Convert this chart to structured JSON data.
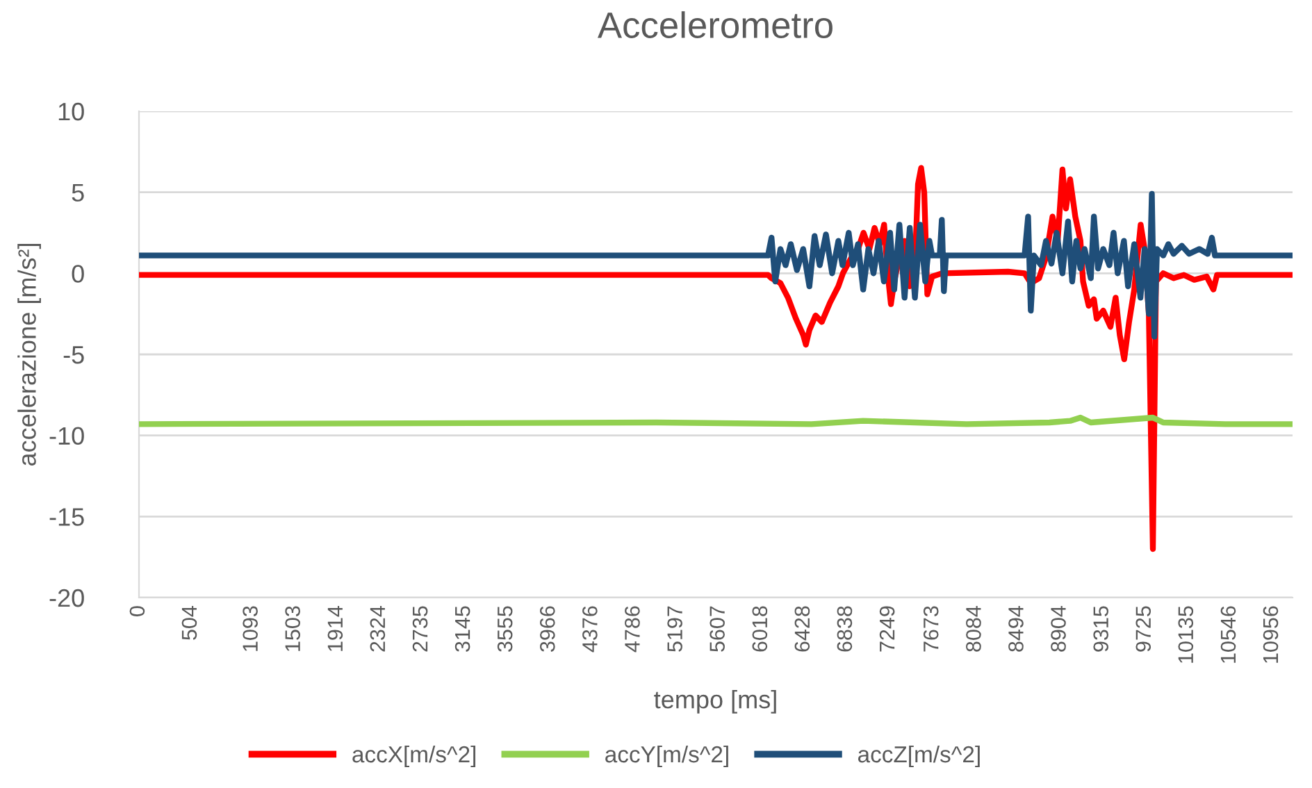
{
  "chart_data": {
    "type": "line",
    "title": "Accelerometro",
    "xlabel": "tempo [ms]",
    "ylabel": "accelerazione [m/s²]",
    "xlim": [
      0,
      11150
    ],
    "ylim": [
      -20,
      10
    ],
    "xticks": [
      0,
      504,
      1093,
      1503,
      1914,
      2324,
      2735,
      3145,
      3555,
      3966,
      4376,
      4786,
      5197,
      5607,
      6018,
      6428,
      6838,
      7249,
      7673,
      8084,
      8494,
      8904,
      9315,
      9725,
      10135,
      10546,
      10956
    ],
    "yticks": [
      -20,
      -15,
      -10,
      -5,
      0,
      5,
      10
    ],
    "grid": "y",
    "legend": "bottom",
    "marker": "none",
    "line_style": "solid",
    "series": [
      {
        "name": "accX[m/s^2]",
        "color": "#ff0000",
        "x": [
          0,
          6080,
          6114,
          6200,
          6273,
          6350,
          6420,
          6446,
          6480,
          6540,
          6600,
          6680,
          6760,
          6804,
          6880,
          6950,
          7003,
          7060,
          7110,
          7160,
          7202,
          7240,
          7268,
          7300,
          7350,
          7401,
          7450,
          7500,
          7530,
          7560,
          7590,
          7620,
          7666,
          7760,
          8400,
          8560,
          8620,
          8700,
          8767,
          8830,
          8880,
          8926,
          8960,
          9000,
          9050,
          9100,
          9125,
          9180,
          9230,
          9257,
          9320,
          9390,
          9440,
          9480,
          9523,
          9570,
          9620,
          9682,
          9720,
          9761,
          9800,
          9830,
          9900,
          10000,
          10100,
          10200,
          10320,
          10385,
          10420,
          10600,
          11150
        ],
        "values": [
          -0.1,
          -0.1,
          -0.3,
          -0.6,
          -1.5,
          -2.8,
          -3.8,
          -4.4,
          -3.5,
          -2.6,
          -3.0,
          -1.8,
          -0.8,
          0.0,
          0.9,
          1.5,
          2.5,
          1.5,
          2.8,
          1.8,
          3.0,
          -0.2,
          -1.9,
          -0.5,
          1.0,
          2.0,
          -0.8,
          0.5,
          5.5,
          6.5,
          5.0,
          -1.3,
          -0.2,
          0.0,
          0.1,
          0.0,
          -0.6,
          -0.3,
          1.0,
          3.5,
          2.0,
          6.4,
          4.0,
          5.8,
          3.5,
          2.0,
          -0.5,
          -2.0,
          -1.6,
          -2.8,
          -2.3,
          -3.3,
          -1.5,
          -3.8,
          -5.3,
          -3.0,
          -1.0,
          3.0,
          1.5,
          -2.5,
          -17.0,
          -0.5,
          0.0,
          -0.3,
          -0.1,
          -0.4,
          -0.2,
          -1.0,
          -0.1,
          -0.1,
          -0.1
        ]
      },
      {
        "name": "accY[m/s^2]",
        "color": "#92d050",
        "x": [
          0,
          5000,
          6500,
          7000,
          7500,
          8000,
          8800,
          9000,
          9100,
          9200,
          9800,
          9900,
          10500,
          11150
        ],
        "values": [
          -9.3,
          -9.2,
          -9.3,
          -9.1,
          -9.2,
          -9.3,
          -9.2,
          -9.1,
          -8.9,
          -9.2,
          -8.9,
          -9.2,
          -9.3,
          -9.3
        ]
      },
      {
        "name": "accZ[m/s^2]",
        "color": "#1f4e79",
        "x": [
          0,
          6080,
          6114,
          6150,
          6200,
          6250,
          6300,
          6360,
          6420,
          6480,
          6530,
          6580,
          6640,
          6700,
          6760,
          6800,
          6860,
          6900,
          6950,
          7000,
          7050,
          7100,
          7150,
          7200,
          7260,
          7300,
          7350,
          7400,
          7450,
          7500,
          7550,
          7600,
          7640,
          7666,
          7740,
          7760,
          7780,
          7800,
          8560,
          8594,
          8620,
          8650,
          8720,
          8767,
          8820,
          8870,
          8926,
          8980,
          9020,
          9060,
          9100,
          9140,
          9200,
          9230,
          9270,
          9320,
          9380,
          9420,
          9460,
          9520,
          9560,
          9620,
          9680,
          9720,
          9761,
          9790,
          9814,
          9840,
          9900,
          9950,
          10000,
          10080,
          10150,
          10250,
          10330,
          10370,
          10400,
          11150
        ],
        "values": [
          1.1,
          1.1,
          2.2,
          -0.5,
          1.5,
          0.5,
          1.8,
          0.2,
          1.5,
          -0.8,
          2.3,
          0.5,
          2.4,
          0.0,
          2.0,
          0.5,
          2.5,
          0.5,
          1.8,
          -1.0,
          1.5,
          0.0,
          2.0,
          -0.5,
          2.5,
          -1.0,
          3.0,
          -1.5,
          2.8,
          -1.5,
          3.0,
          -0.5,
          2.0,
          1.1,
          1.1,
          3.3,
          -1.1,
          1.1,
          1.1,
          3.5,
          -2.3,
          1.1,
          0.5,
          2.0,
          0.6,
          2.5,
          0.0,
          3.2,
          -0.5,
          2.0,
          0.3,
          1.5,
          -0.3,
          3.5,
          0.3,
          1.5,
          0.5,
          2.5,
          0.0,
          2.0,
          -0.8,
          1.8,
          -1.5,
          1.5,
          -2.5,
          4.9,
          -3.9,
          1.5,
          1.1,
          1.8,
          1.2,
          1.7,
          1.2,
          1.5,
          1.2,
          2.2,
          1.1,
          1.1
        ]
      }
    ]
  }
}
